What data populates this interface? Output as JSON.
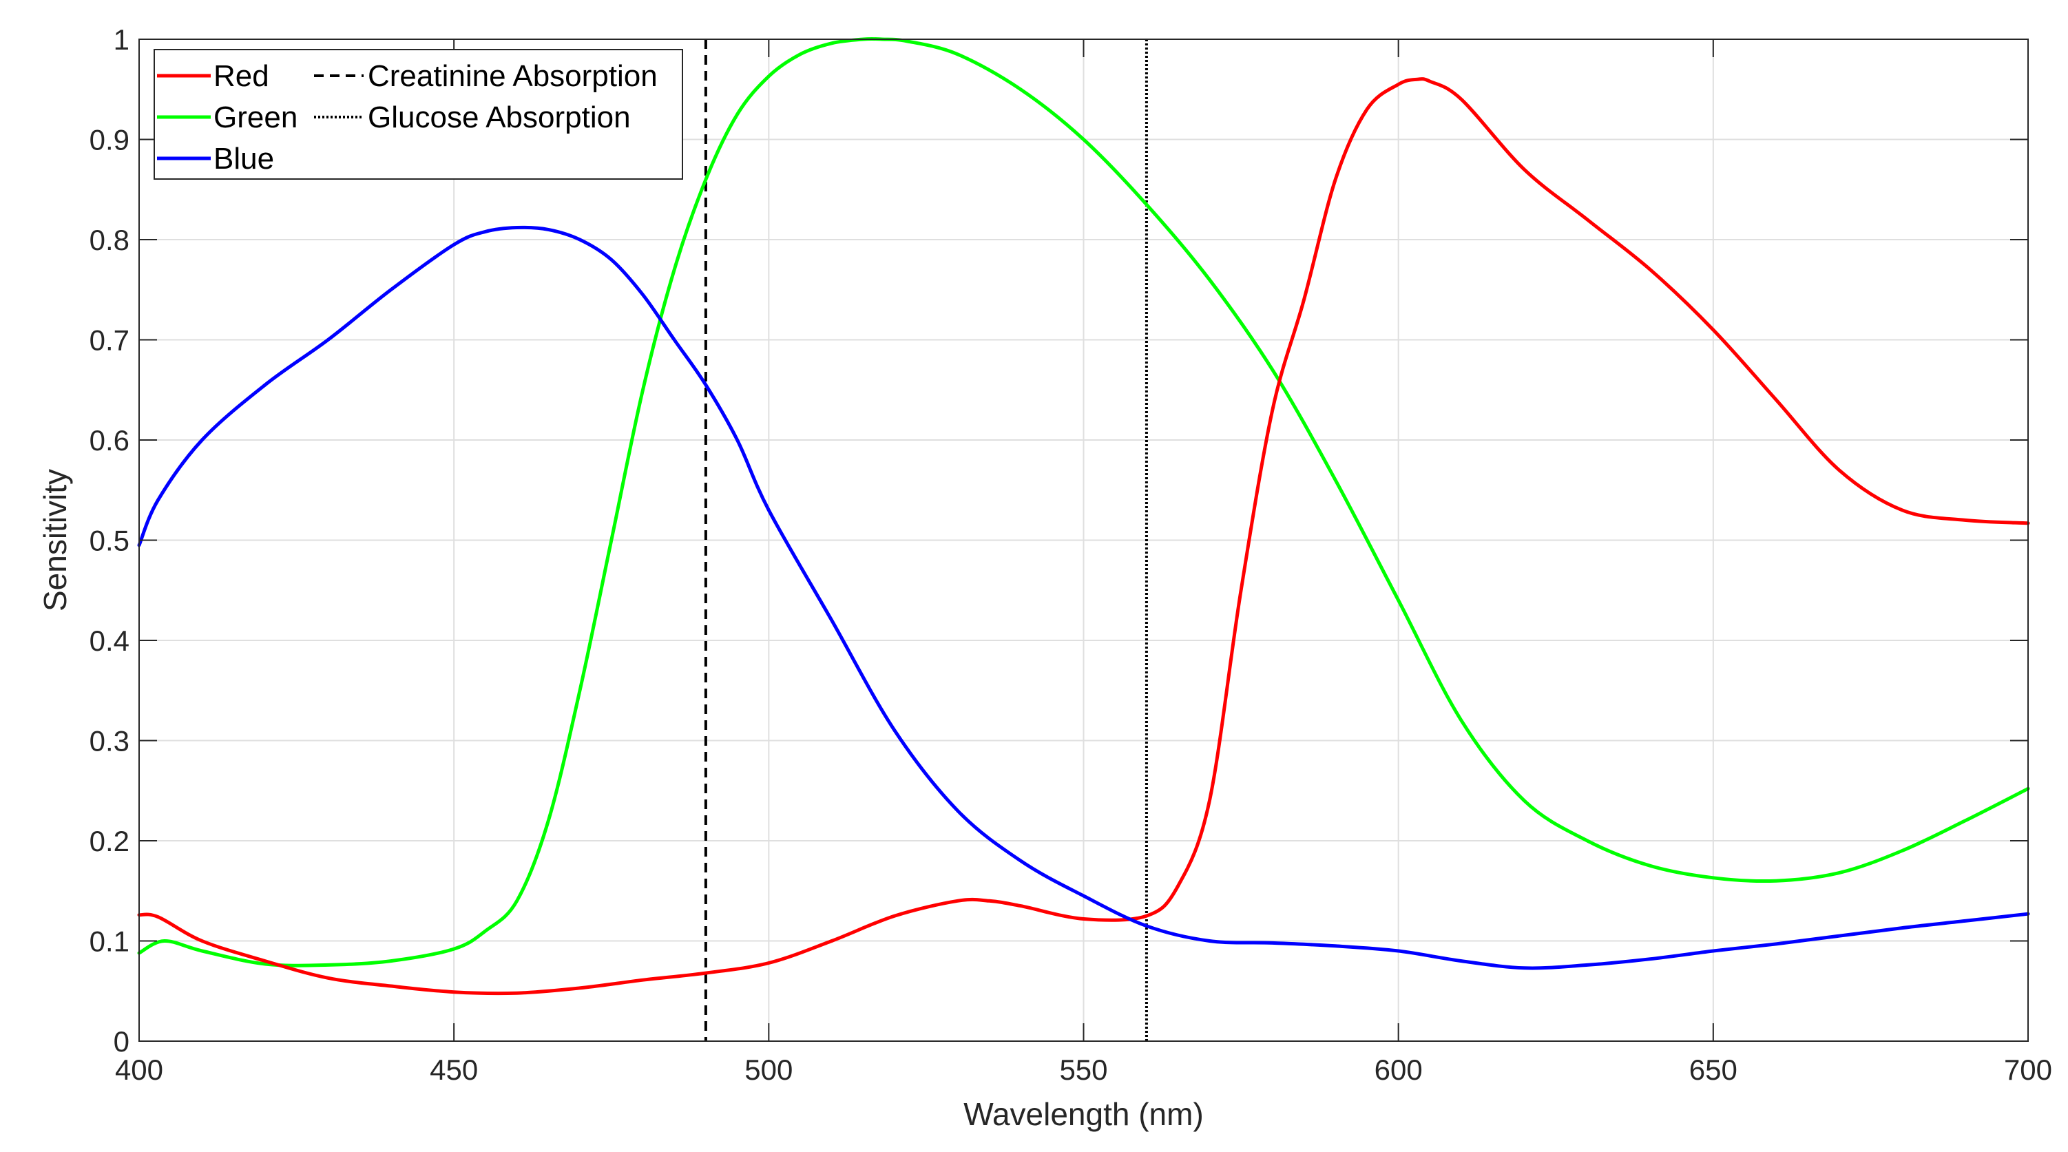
{
  "chart_data": {
    "type": "line",
    "title": "",
    "xlabel": "Wavelength (nm)",
    "ylabel": "Sensitivity",
    "xlim": [
      400,
      700
    ],
    "ylim": [
      0,
      1
    ],
    "grid": true,
    "legend_position": "top-left",
    "xticks": [
      400,
      450,
      500,
      550,
      600,
      650,
      700
    ],
    "xtick_labels": [
      "400",
      "450",
      "500",
      "550",
      "600",
      "650",
      "700"
    ],
    "yticks": [
      0,
      0.1,
      0.2,
      0.3,
      0.4,
      0.5,
      0.6,
      0.7,
      0.8,
      0.9,
      1
    ],
    "ytick_labels": [
      "0",
      "0.1",
      "0.2",
      "0.3",
      "0.4",
      "0.5",
      "0.6",
      "0.7",
      "0.8",
      "0.9",
      "1"
    ],
    "series": [
      {
        "name": "Red",
        "color": "#ff0000",
        "x": [
          400,
          403,
          410,
          420,
          430,
          440,
          450,
          460,
          470,
          480,
          490,
          500,
          510,
          520,
          530,
          535,
          540,
          550,
          560,
          565,
          570,
          575,
          580,
          585,
          590,
          595,
          600,
          603,
          605,
          610,
          620,
          630,
          640,
          650,
          660,
          670,
          680,
          690,
          700
        ],
        "y": [
          0.126,
          0.124,
          0.1,
          0.08,
          0.063,
          0.055,
          0.049,
          0.048,
          0.053,
          0.061,
          0.068,
          0.078,
          0.1,
          0.125,
          0.14,
          0.14,
          0.135,
          0.122,
          0.125,
          0.155,
          0.24,
          0.45,
          0.63,
          0.74,
          0.86,
          0.93,
          0.955,
          0.96,
          0.958,
          0.94,
          0.87,
          0.82,
          0.77,
          0.71,
          0.64,
          0.57,
          0.53,
          0.52,
          0.517
        ]
      },
      {
        "name": "Green",
        "color": "#00ff00",
        "x": [
          400,
          404,
          410,
          420,
          430,
          440,
          450,
          455,
          460,
          465,
          470,
          475,
          480,
          485,
          490,
          495,
          500,
          505,
          510,
          515,
          518,
          522,
          530,
          540,
          550,
          560,
          570,
          580,
          590,
          600,
          610,
          620,
          630,
          640,
          650,
          660,
          670,
          680,
          690,
          700
        ],
        "y": [
          0.088,
          0.1,
          0.09,
          0.077,
          0.076,
          0.08,
          0.092,
          0.11,
          0.14,
          0.22,
          0.35,
          0.5,
          0.65,
          0.77,
          0.86,
          0.925,
          0.963,
          0.985,
          0.996,
          1.0,
          1.0,
          0.998,
          0.985,
          0.95,
          0.9,
          0.835,
          0.76,
          0.67,
          0.56,
          0.44,
          0.32,
          0.24,
          0.2,
          0.175,
          0.163,
          0.16,
          0.168,
          0.19,
          0.22,
          0.252
        ]
      },
      {
        "name": "Blue",
        "color": "#0000ff",
        "x": [
          400,
          403,
          410,
          420,
          430,
          440,
          450,
          455,
          460,
          465,
          470,
          475,
          480,
          485,
          490,
          495,
          500,
          510,
          520,
          530,
          540,
          550,
          560,
          570,
          580,
          590,
          600,
          610,
          620,
          630,
          640,
          650,
          660,
          670,
          680,
          690,
          700
        ],
        "y": [
          0.495,
          0.54,
          0.6,
          0.655,
          0.7,
          0.75,
          0.795,
          0.808,
          0.812,
          0.81,
          0.8,
          0.78,
          0.745,
          0.7,
          0.655,
          0.6,
          0.53,
          0.42,
          0.31,
          0.23,
          0.18,
          0.145,
          0.115,
          0.1,
          0.098,
          0.095,
          0.09,
          0.08,
          0.073,
          0.076,
          0.082,
          0.09,
          0.097,
          0.105,
          0.113,
          0.12,
          0.127
        ]
      }
    ],
    "reference_lines": [
      {
        "name": "Creatinine Absorption",
        "x": 490,
        "style": "dashed"
      },
      {
        "name": "Glucose Absorption",
        "x": 560,
        "style": "dotted"
      }
    ]
  }
}
